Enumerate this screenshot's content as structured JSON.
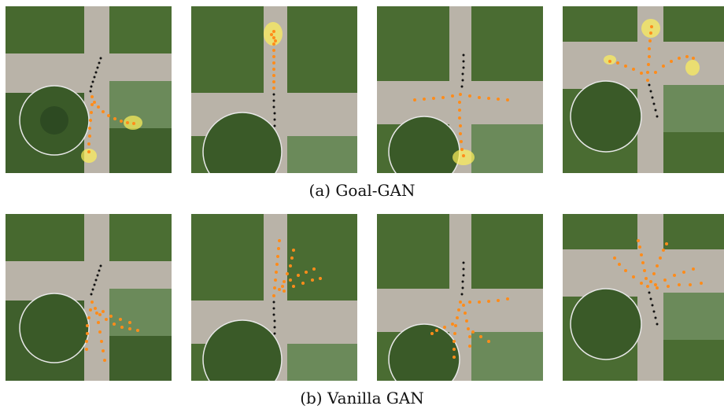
{
  "captions": {
    "row_a": "(a) Goal-GAN",
    "row_b": "(b) Vanilla GAN"
  },
  "colors": {
    "prediction": "#ff8c1a",
    "observed_track": "#111111",
    "goal_heatmap": "#fff15a",
    "grass": "#3f5f2c",
    "path": "#b9b3a8"
  }
}
